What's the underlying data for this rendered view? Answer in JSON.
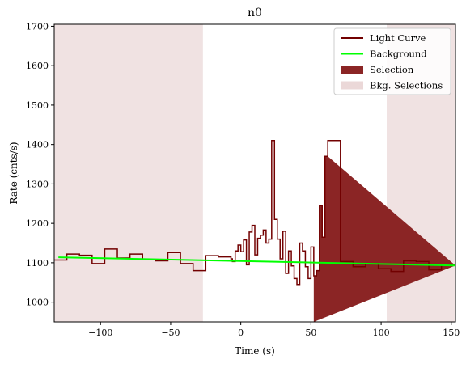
{
  "chart_data": {
    "type": "line",
    "title": "n0",
    "xlabel": "Time (s)",
    "ylabel": "Rate (cnts/s)",
    "xlim": [
      -133,
      153
    ],
    "ylim": [
      950,
      1705
    ],
    "x_ticks": [
      -100,
      -50,
      0,
      50,
      100,
      150
    ],
    "x_tick_labels": [
      "−100",
      "−50",
      "0",
      "50",
      "100",
      "150"
    ],
    "y_ticks": [
      1000,
      1100,
      1200,
      1300,
      1400,
      1500,
      1600,
      1700
    ],
    "y_tick_labels": [
      "1000",
      "1100",
      "1200",
      "1300",
      "1400",
      "1500",
      "1600",
      "1700"
    ],
    "grid": false,
    "legend_position": "top-right",
    "legend": [
      {
        "label": "Light Curve",
        "kind": "line",
        "color": "#720000"
      },
      {
        "label": "Background",
        "kind": "line",
        "color": "#00ff00"
      },
      {
        "label": "Selection",
        "kind": "patch",
        "color": "#8b2525"
      },
      {
        "label": "Bkg. Selections",
        "kind": "patch",
        "color": "#ebd8d8"
      }
    ],
    "light_curve": {
      "name": "Light Curve",
      "color": "#720000",
      "edges": [
        -133,
        -124,
        -115,
        -106,
        -97,
        -88,
        -79,
        -70,
        -61,
        -52,
        -43,
        -34,
        -25,
        -16,
        -7,
        -6,
        -4,
        -2,
        0,
        2,
        4,
        6,
        8,
        10,
        12,
        14,
        16,
        18,
        20,
        22,
        24,
        26,
        28,
        30,
        32,
        34,
        36,
        38,
        40,
        42,
        44,
        46,
        48,
        50,
        52,
        54,
        56,
        58,
        60,
        62,
        71,
        80,
        89,
        98,
        107,
        116,
        125,
        134,
        143,
        153
      ],
      "values": [
        1107,
        1122,
        1119,
        1098,
        1135,
        1112,
        1122,
        1108,
        1105,
        1126,
        1098,
        1080,
        1118,
        1115,
        1110,
        1103,
        1130,
        1145,
        1128,
        1158,
        1095,
        1178,
        1195,
        1120,
        1162,
        1170,
        1183,
        1150,
        1160,
        1410,
        1210,
        1160,
        1110,
        1180,
        1073,
        1130,
        1092,
        1060,
        1045,
        1150,
        1130,
        1090,
        1060,
        1140,
        1067,
        1080,
        1245,
        1165,
        1370,
        1410,
        1103,
        1090,
        1098,
        1085,
        1078,
        1105,
        1103,
        1082,
        1095,
        1093
      ]
    },
    "background": {
      "name": "Background",
      "color": "#00ff00",
      "x": [
        -130,
        153
      ],
      "y": [
        1114,
        1093
      ]
    },
    "selection": {
      "name": "Selection",
      "color": "#8b2525",
      "range": [
        52,
        62
      ]
    },
    "bkg_selections": {
      "name": "Bkg. Selections",
      "color": "#ebd8d8",
      "ranges": [
        [
          -133,
          -27
        ],
        [
          104,
          153
        ]
      ]
    }
  }
}
